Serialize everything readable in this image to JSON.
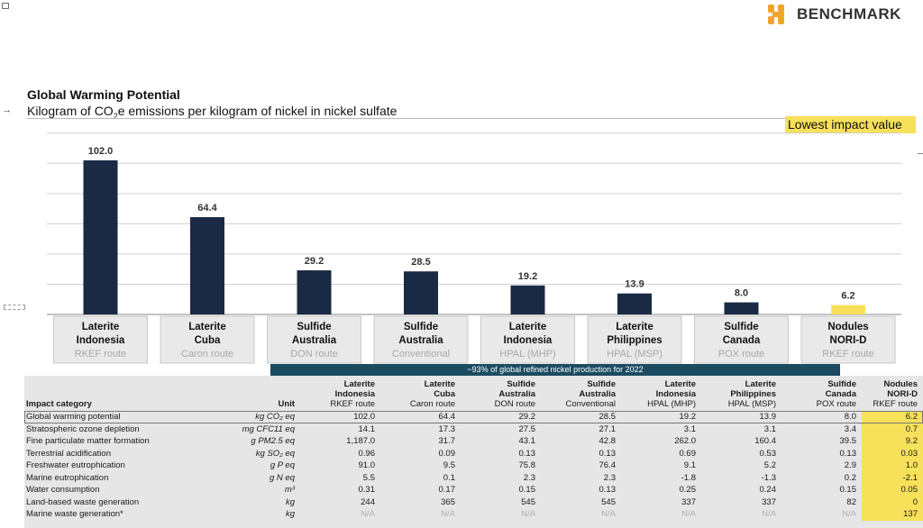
{
  "brand": {
    "name": "BENCHMARK",
    "color": "#f0a52a"
  },
  "header": {
    "title": "Global Warming Potential",
    "subtitle_pre": "Kilogram of CO",
    "subtitle_sub": "2",
    "subtitle_post": "e emissions per kilogram of nickel in nickel sulfate"
  },
  "legend": {
    "label": "Lowest impact value",
    "color": "#f7e05a"
  },
  "chart_data": {
    "type": "bar",
    "title": "Global Warming Potential",
    "ylabel": "Kilogram of CO2e emissions per kilogram of nickel in nickel sulfate",
    "ylim": [
      0,
      130
    ],
    "grid": true,
    "categories": [
      {
        "line1": "Laterite",
        "line2": "Indonesia",
        "route": "RKEF route"
      },
      {
        "line1": "Laterite",
        "line2": "Cuba",
        "route": "Caron route"
      },
      {
        "line1": "Sulfide",
        "line2": "Australia",
        "route": "DON route"
      },
      {
        "line1": "Sulfide",
        "line2": "Australia",
        "route": "Conventional"
      },
      {
        "line1": "Laterite",
        "line2": "Indonesia",
        "route": "HPAL (MHP)"
      },
      {
        "line1": "Laterite",
        "line2": "Philippines",
        "route": "HPAL (MSP)"
      },
      {
        "line1": "Sulfide",
        "line2": "Canada",
        "route": "POX route"
      },
      {
        "line1": "Nodules",
        "line2": "NORI-D",
        "route": "RKEF route"
      }
    ],
    "values": [
      102.0,
      64.4,
      29.2,
      28.5,
      19.2,
      13.9,
      8.0,
      6.2
    ],
    "labels": [
      "102.0",
      "64.4",
      "29.2",
      "28.5",
      "19.2",
      "13.9",
      "8.0",
      "6.2"
    ],
    "bar_color": "#1a2a44",
    "highlight_color": "#f7e05a",
    "highlight_index": 7
  },
  "band_text": "~93% of global refined nickel production for 2022",
  "table": {
    "header_category": "Impact category",
    "header_unit": "Unit",
    "columns": [
      {
        "line1": "Laterite",
        "line2": "Indonesia",
        "line3": "RKEF route"
      },
      {
        "line1": "Laterite",
        "line2": "Cuba",
        "line3": "Caron route"
      },
      {
        "line1": "Sulfide",
        "line2": "Australia",
        "line3": "DON route"
      },
      {
        "line1": "Sulfide",
        "line2": "Australia",
        "line3": "Conventional"
      },
      {
        "line1": "Laterite",
        "line2": "Indonesia",
        "line3": "HPAL (MHP)"
      },
      {
        "line1": "Laterite",
        "line2": "Philippines",
        "line3": "HPAL (MSP)"
      },
      {
        "line1": "Sulfide",
        "line2": "Canada",
        "line3": "POX route"
      },
      {
        "line1": "Nodules",
        "line2": "NORI-D",
        "line3": "RKEF route"
      }
    ],
    "rows": [
      {
        "category": "Global warming potential",
        "unit": "kg CO₂ eq",
        "values": [
          "102.0",
          "64.4",
          "29.2",
          "28.5",
          "19.2",
          "13.9",
          "8.0",
          "6.2"
        ]
      },
      {
        "category": "Stratospheric ozone depletion",
        "unit": "mg CFC11 eq",
        "values": [
          "14.1",
          "17.3",
          "27.5",
          "27.1",
          "3.1",
          "3.1",
          "3.4",
          "0.7"
        ]
      },
      {
        "category": "Fine particulate matter formation",
        "unit": "g PM2.5 eq",
        "values": [
          "1,187.0",
          "31.7",
          "43.1",
          "42.8",
          "262.0",
          "160.4",
          "39.5",
          "9.2"
        ]
      },
      {
        "category": "Terrestrial acidification",
        "unit": "kg SO₂ eq",
        "values": [
          "0.96",
          "0.09",
          "0.13",
          "0.13",
          "0.69",
          "0.53",
          "0.13",
          "0.03"
        ]
      },
      {
        "category": "Freshwater eutrophication",
        "unit": "g P eq",
        "values": [
          "91.0",
          "9.5",
          "75.8",
          "76.4",
          "9.1",
          "5.2",
          "2.9",
          "1.0"
        ]
      },
      {
        "category": "Marine eutrophication",
        "unit": "g N eq",
        "values": [
          "5.5",
          "0.1",
          "2.3",
          "2.3",
          "-1.8",
          "-1.3",
          "0.2",
          "-2.1"
        ]
      },
      {
        "category": "Water consumption",
        "unit": "m³",
        "values": [
          "0.31",
          "0.17",
          "0.15",
          "0.13",
          "0.25",
          "0.24",
          "0.15",
          "0.05"
        ]
      },
      {
        "category": "Land-based waste generation",
        "unit": "kg",
        "values": [
          "244",
          "365",
          "545",
          "545",
          "337",
          "337",
          "82",
          "0"
        ]
      },
      {
        "category": "Marine waste generation*",
        "unit": "kg",
        "values": [
          "N/A",
          "N/A",
          "N/A",
          "N/A",
          "N/A",
          "N/A",
          "N/A",
          "137"
        ]
      }
    ]
  }
}
